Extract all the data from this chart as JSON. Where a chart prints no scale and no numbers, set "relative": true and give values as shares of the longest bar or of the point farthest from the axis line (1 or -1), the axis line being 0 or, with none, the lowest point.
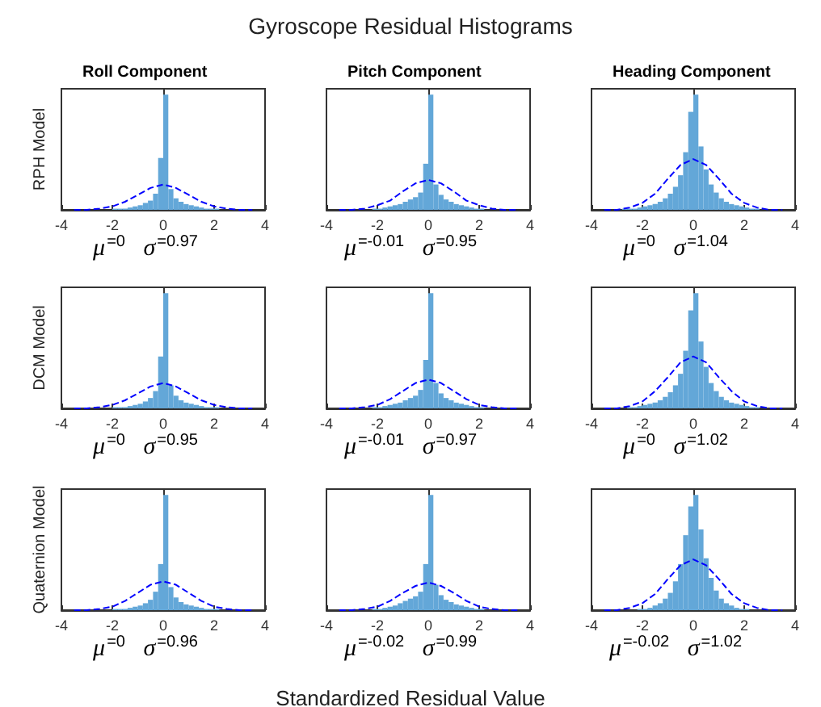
{
  "chart_data": [
    {
      "type": "histogram",
      "relative": true,
      "subtitle": "Roll Component",
      "ylabel": "RPH Model",
      "xlim": [
        -4,
        4
      ],
      "xticks": [
        -4,
        -2,
        0,
        2,
        4
      ],
      "color": "#63a7d8",
      "bins": [
        -3,
        -2.8,
        -2.6,
        -2.4,
        -2.2,
        -2,
        -1.8,
        -1.6,
        -1.4,
        -1.2,
        -1,
        -0.8,
        -0.6,
        -0.4,
        -0.2,
        0,
        0.2,
        0.4,
        0.6,
        0.8,
        1,
        1.2,
        1.4,
        1.6,
        1.8,
        2,
        2.2,
        2.4,
        2.6,
        2.8,
        3
      ],
      "values": [
        0,
        0,
        0,
        0,
        0,
        0.01,
        0.01,
        0.01,
        0.02,
        0.03,
        0.04,
        0.06,
        0.08,
        0.14,
        0.45,
        1,
        0.18,
        0.1,
        0.07,
        0.05,
        0.04,
        0.03,
        0.02,
        0.01,
        0.01,
        0.01,
        0,
        0,
        0,
        0
      ],
      "series": [
        {
          "type": "line",
          "color": "#0000ff",
          "line_style": "dashed",
          "x": [
            -3.5,
            -3,
            -2.5,
            -2,
            -1.5,
            -1,
            -0.5,
            0,
            0.5,
            1,
            1.5,
            2,
            2.5,
            3,
            3.5
          ],
          "values": [
            0,
            0,
            0.01,
            0.03,
            0.07,
            0.13,
            0.19,
            0.22,
            0.19,
            0.13,
            0.07,
            0.03,
            0.01,
            0,
            0
          ]
        }
      ],
      "annotations": [
        "μ$^{=0}$   σ$^{=0.97}$"
      ]
    },
    {
      "type": "histogram",
      "relative": true,
      "title": "Gyroscope Residual Histograms",
      "subtitle": "Pitch Component",
      "xlim": [
        -4,
        4
      ],
      "xticks": [
        -4,
        -2,
        0,
        2,
        4
      ],
      "color": "#63a7d8",
      "bins": [
        -3,
        -2.8,
        -2.6,
        -2.4,
        -2.2,
        -2,
        -1.8,
        -1.6,
        -1.4,
        -1.2,
        -1,
        -0.8,
        -0.6,
        -0.4,
        -0.2,
        0,
        0.2,
        0.4,
        0.6,
        0.8,
        1,
        1.2,
        1.4,
        1.6,
        1.8,
        2,
        2.2,
        2.4,
        2.6,
        2.8,
        3
      ],
      "values": [
        0,
        0,
        0,
        0,
        0.01,
        0.01,
        0.02,
        0.03,
        0.04,
        0.05,
        0.07,
        0.09,
        0.11,
        0.15,
        0.4,
        1,
        0.22,
        0.13,
        0.09,
        0.07,
        0.05,
        0.04,
        0.03,
        0.02,
        0.01,
        0.01,
        0,
        0,
        0,
        0
      ],
      "series": [
        {
          "type": "line",
          "color": "#0000ff",
          "line_style": "dashed",
          "x": [
            -3.5,
            -3,
            -2.5,
            -2,
            -1.5,
            -1,
            -0.5,
            0,
            0.5,
            1,
            1.5,
            2,
            2.5,
            3,
            3.5
          ],
          "values": [
            0,
            0,
            0.01,
            0.04,
            0.08,
            0.16,
            0.23,
            0.26,
            0.23,
            0.16,
            0.08,
            0.04,
            0.01,
            0,
            0
          ]
        }
      ],
      "annotations": [
        "μ$^{=-0.01}$   σ$^{=0.95}$"
      ]
    },
    {
      "type": "histogram",
      "relative": true,
      "subtitle": "Heading Component",
      "xlim": [
        -4,
        4
      ],
      "xticks": [
        -4,
        -2,
        0,
        2,
        4
      ],
      "color": "#63a7d8",
      "bins": [
        -3,
        -2.8,
        -2.6,
        -2.4,
        -2.2,
        -2,
        -1.8,
        -1.6,
        -1.4,
        -1.2,
        -1,
        -0.8,
        -0.6,
        -0.4,
        -0.2,
        0,
        0.2,
        0.4,
        0.6,
        0.8,
        1,
        1.2,
        1.4,
        1.6,
        1.8,
        2,
        2.2,
        2.4,
        2.6,
        2.8,
        3
      ],
      "values": [
        0,
        0.01,
        0.01,
        0.01,
        0.02,
        0.03,
        0.04,
        0.05,
        0.07,
        0.1,
        0.14,
        0.2,
        0.3,
        0.5,
        0.85,
        1,
        0.55,
        0.35,
        0.22,
        0.15,
        0.1,
        0.07,
        0.05,
        0.04,
        0.03,
        0.02,
        0.01,
        0.01,
        0,
        0
      ],
      "series": [
        {
          "type": "line",
          "color": "#0000ff",
          "line_style": "dashed",
          "x": [
            -3.5,
            -3,
            -2.5,
            -2,
            -1.5,
            -1,
            -0.5,
            0,
            0.5,
            1,
            1.5,
            2,
            2.5,
            3,
            3.5
          ],
          "values": [
            0,
            0,
            0.02,
            0.06,
            0.14,
            0.27,
            0.39,
            0.44,
            0.39,
            0.27,
            0.14,
            0.06,
            0.02,
            0,
            0
          ]
        }
      ],
      "annotations": [
        "μ$^{=0}$   σ$^{=1.04}$"
      ]
    },
    {
      "type": "histogram",
      "relative": true,
      "ylabel": "DCM Model",
      "xlim": [
        -4,
        4
      ],
      "xticks": [
        -4,
        -2,
        0,
        2,
        4
      ],
      "color": "#63a7d8",
      "bins": [
        -3,
        -2.8,
        -2.6,
        -2.4,
        -2.2,
        -2,
        -1.8,
        -1.6,
        -1.4,
        -1.2,
        -1,
        -0.8,
        -0.6,
        -0.4,
        -0.2,
        0,
        0.2,
        0.4,
        0.6,
        0.8,
        1,
        1.2,
        1.4,
        1.6,
        1.8,
        2,
        2.2,
        2.4,
        2.6,
        2.8,
        3
      ],
      "values": [
        0,
        0,
        0,
        0,
        0,
        0.01,
        0.01,
        0.01,
        0.02,
        0.03,
        0.04,
        0.06,
        0.09,
        0.15,
        0.45,
        1,
        0.2,
        0.11,
        0.07,
        0.05,
        0.04,
        0.03,
        0.02,
        0.01,
        0.01,
        0.01,
        0,
        0,
        0,
        0
      ],
      "series": [
        {
          "type": "line",
          "color": "#0000ff",
          "line_style": "dashed",
          "x": [
            -3.5,
            -3,
            -2.5,
            -2,
            -1.5,
            -1,
            -0.5,
            0,
            0.5,
            1,
            1.5,
            2,
            2.5,
            3,
            3.5
          ],
          "values": [
            0,
            0,
            0.01,
            0.03,
            0.07,
            0.13,
            0.19,
            0.22,
            0.19,
            0.13,
            0.07,
            0.03,
            0.01,
            0,
            0
          ]
        }
      ],
      "annotations": [
        "μ$^{=0}$   σ$^{=0.95}$"
      ]
    },
    {
      "type": "histogram",
      "relative": true,
      "xlim": [
        -4,
        4
      ],
      "xticks": [
        -4,
        -2,
        0,
        2,
        4
      ],
      "color": "#63a7d8",
      "bins": [
        -3,
        -2.8,
        -2.6,
        -2.4,
        -2.2,
        -2,
        -1.8,
        -1.6,
        -1.4,
        -1.2,
        -1,
        -0.8,
        -0.6,
        -0.4,
        -0.2,
        0,
        0.2,
        0.4,
        0.6,
        0.8,
        1,
        1.2,
        1.4,
        1.6,
        1.8,
        2,
        2.2,
        2.4,
        2.6,
        2.8,
        3
      ],
      "values": [
        0,
        0,
        0,
        0,
        0.01,
        0.01,
        0.02,
        0.03,
        0.04,
        0.05,
        0.07,
        0.09,
        0.11,
        0.16,
        0.42,
        1,
        0.22,
        0.13,
        0.09,
        0.07,
        0.05,
        0.04,
        0.03,
        0.02,
        0.01,
        0.01,
        0,
        0,
        0,
        0
      ],
      "series": [
        {
          "type": "line",
          "color": "#0000ff",
          "line_style": "dashed",
          "x": [
            -3.5,
            -3,
            -2.5,
            -2,
            -1.5,
            -1,
            -0.5,
            0,
            0.5,
            1,
            1.5,
            2,
            2.5,
            3,
            3.5
          ],
          "values": [
            0,
            0,
            0.01,
            0.03,
            0.08,
            0.15,
            0.22,
            0.25,
            0.22,
            0.15,
            0.08,
            0.03,
            0.01,
            0,
            0
          ]
        }
      ],
      "annotations": [
        "μ$^{=-0.01}$   σ$^{=0.97}$"
      ]
    },
    {
      "type": "histogram",
      "relative": true,
      "xlim": [
        -4,
        4
      ],
      "xticks": [
        -4,
        -2,
        0,
        2,
        4
      ],
      "color": "#63a7d8",
      "bins": [
        -3,
        -2.8,
        -2.6,
        -2.4,
        -2.2,
        -2,
        -1.8,
        -1.6,
        -1.4,
        -1.2,
        -1,
        -0.8,
        -0.6,
        -0.4,
        -0.2,
        0,
        0.2,
        0.4,
        0.6,
        0.8,
        1,
        1.2,
        1.4,
        1.6,
        1.8,
        2,
        2.2,
        2.4,
        2.6,
        2.8,
        3
      ],
      "values": [
        0,
        0,
        0.01,
        0.01,
        0.02,
        0.03,
        0.04,
        0.05,
        0.07,
        0.1,
        0.14,
        0.2,
        0.3,
        0.5,
        0.85,
        1,
        0.58,
        0.36,
        0.22,
        0.15,
        0.1,
        0.07,
        0.05,
        0.04,
        0.03,
        0.02,
        0.01,
        0.01,
        0,
        0
      ],
      "series": [
        {
          "type": "line",
          "color": "#0000ff",
          "line_style": "dashed",
          "x": [
            -3.5,
            -3,
            -2.5,
            -2,
            -1.5,
            -1,
            -0.5,
            0,
            0.5,
            1,
            1.5,
            2,
            2.5,
            3,
            3.5
          ],
          "values": [
            0,
            0,
            0.02,
            0.06,
            0.15,
            0.27,
            0.4,
            0.45,
            0.4,
            0.27,
            0.15,
            0.06,
            0.02,
            0,
            0
          ]
        }
      ],
      "annotations": [
        "μ$^{=0}$   σ$^{=1.02}$"
      ]
    },
    {
      "type": "histogram",
      "relative": true,
      "ylabel": "Quaternion Model",
      "xlim": [
        -4,
        4
      ],
      "xticks": [
        -4,
        -2,
        0,
        2,
        4
      ],
      "color": "#63a7d8",
      "bins": [
        -3,
        -2.8,
        -2.6,
        -2.4,
        -2.2,
        -2,
        -1.8,
        -1.6,
        -1.4,
        -1.2,
        -1,
        -0.8,
        -0.6,
        -0.4,
        -0.2,
        0,
        0.2,
        0.4,
        0.6,
        0.8,
        1,
        1.2,
        1.4,
        1.6,
        1.8,
        2,
        2.2,
        2.4,
        2.6,
        2.8,
        3
      ],
      "values": [
        0,
        0,
        0,
        0,
        0,
        0.01,
        0.01,
        0.01,
        0.02,
        0.03,
        0.04,
        0.06,
        0.09,
        0.16,
        0.4,
        1,
        0.2,
        0.11,
        0.07,
        0.05,
        0.04,
        0.03,
        0.02,
        0.01,
        0.01,
        0.01,
        0,
        0,
        0,
        0
      ],
      "series": [
        {
          "type": "line",
          "color": "#0000ff",
          "line_style": "dashed",
          "x": [
            -3.5,
            -3,
            -2.5,
            -2,
            -1.5,
            -1,
            -0.5,
            0,
            0.5,
            1,
            1.5,
            2,
            2.5,
            3,
            3.5
          ],
          "values": [
            0,
            0,
            0.01,
            0.03,
            0.08,
            0.15,
            0.22,
            0.25,
            0.22,
            0.15,
            0.08,
            0.03,
            0.01,
            0,
            0
          ]
        }
      ],
      "annotations": [
        "μ$^{=0}$   σ$^{=0.96}$"
      ]
    },
    {
      "type": "histogram",
      "relative": true,
      "xlabel": "Standardized Residual Value",
      "xlim": [
        -4,
        4
      ],
      "xticks": [
        -4,
        -2,
        0,
        2,
        4
      ],
      "color": "#63a7d8",
      "bins": [
        -3,
        -2.8,
        -2.6,
        -2.4,
        -2.2,
        -2,
        -1.8,
        -1.6,
        -1.4,
        -1.2,
        -1,
        -0.8,
        -0.6,
        -0.4,
        -0.2,
        0,
        0.2,
        0.4,
        0.6,
        0.8,
        1,
        1.2,
        1.4,
        1.6,
        1.8,
        2,
        2.2,
        2.4,
        2.6,
        2.8,
        3
      ],
      "values": [
        0,
        0,
        0,
        0,
        0.01,
        0.01,
        0.02,
        0.03,
        0.04,
        0.06,
        0.08,
        0.1,
        0.12,
        0.16,
        0.4,
        1,
        0.22,
        0.13,
        0.09,
        0.07,
        0.05,
        0.04,
        0.03,
        0.02,
        0.01,
        0.01,
        0,
        0,
        0,
        0
      ],
      "series": [
        {
          "type": "line",
          "color": "#0000ff",
          "line_style": "dashed",
          "x": [
            -3.5,
            -3,
            -2.5,
            -2,
            -1.5,
            -1,
            -0.5,
            0,
            0.5,
            1,
            1.5,
            2,
            2.5,
            3,
            3.5
          ],
          "values": [
            0,
            0,
            0.01,
            0.03,
            0.08,
            0.15,
            0.21,
            0.24,
            0.21,
            0.15,
            0.08,
            0.03,
            0.01,
            0,
            0
          ]
        }
      ],
      "annotations": [
        "μ$^{=-0.02}$   σ$^{=0.99}$"
      ]
    },
    {
      "type": "histogram",
      "relative": true,
      "xlim": [
        -4,
        4
      ],
      "xticks": [
        -4,
        -2,
        0,
        2,
        4
      ],
      "color": "#63a7d8",
      "bins": [
        -3,
        -2.8,
        -2.6,
        -2.4,
        -2.2,
        -2,
        -1.8,
        -1.6,
        -1.4,
        -1.2,
        -1,
        -0.8,
        -0.6,
        -0.4,
        -0.2,
        0,
        0.2,
        0.4,
        0.6,
        0.8,
        1,
        1.2,
        1.4,
        1.6,
        1.8,
        2,
        2.2,
        2.4,
        2.6,
        2.8,
        3
      ],
      "values": [
        0,
        0,
        0,
        0,
        0.01,
        0.01,
        0.02,
        0.04,
        0.06,
        0.1,
        0.15,
        0.25,
        0.4,
        0.65,
        0.9,
        1,
        0.7,
        0.45,
        0.28,
        0.17,
        0.1,
        0.06,
        0.04,
        0.02,
        0.01,
        0.01,
        0,
        0,
        0,
        0
      ],
      "series": [
        {
          "type": "line",
          "color": "#0000ff",
          "line_style": "dashed",
          "x": [
            -3.5,
            -3,
            -2.5,
            -2,
            -1.5,
            -1,
            -0.5,
            0,
            0.5,
            1,
            1.5,
            2,
            2.5,
            3,
            3.5
          ],
          "values": [
            0,
            0,
            0.02,
            0.06,
            0.14,
            0.27,
            0.39,
            0.44,
            0.39,
            0.27,
            0.14,
            0.06,
            0.02,
            0,
            0
          ]
        }
      ],
      "annotations": [
        "μ$^{=-0.02}$   σ$^{=1.02}$"
      ]
    }
  ]
}
